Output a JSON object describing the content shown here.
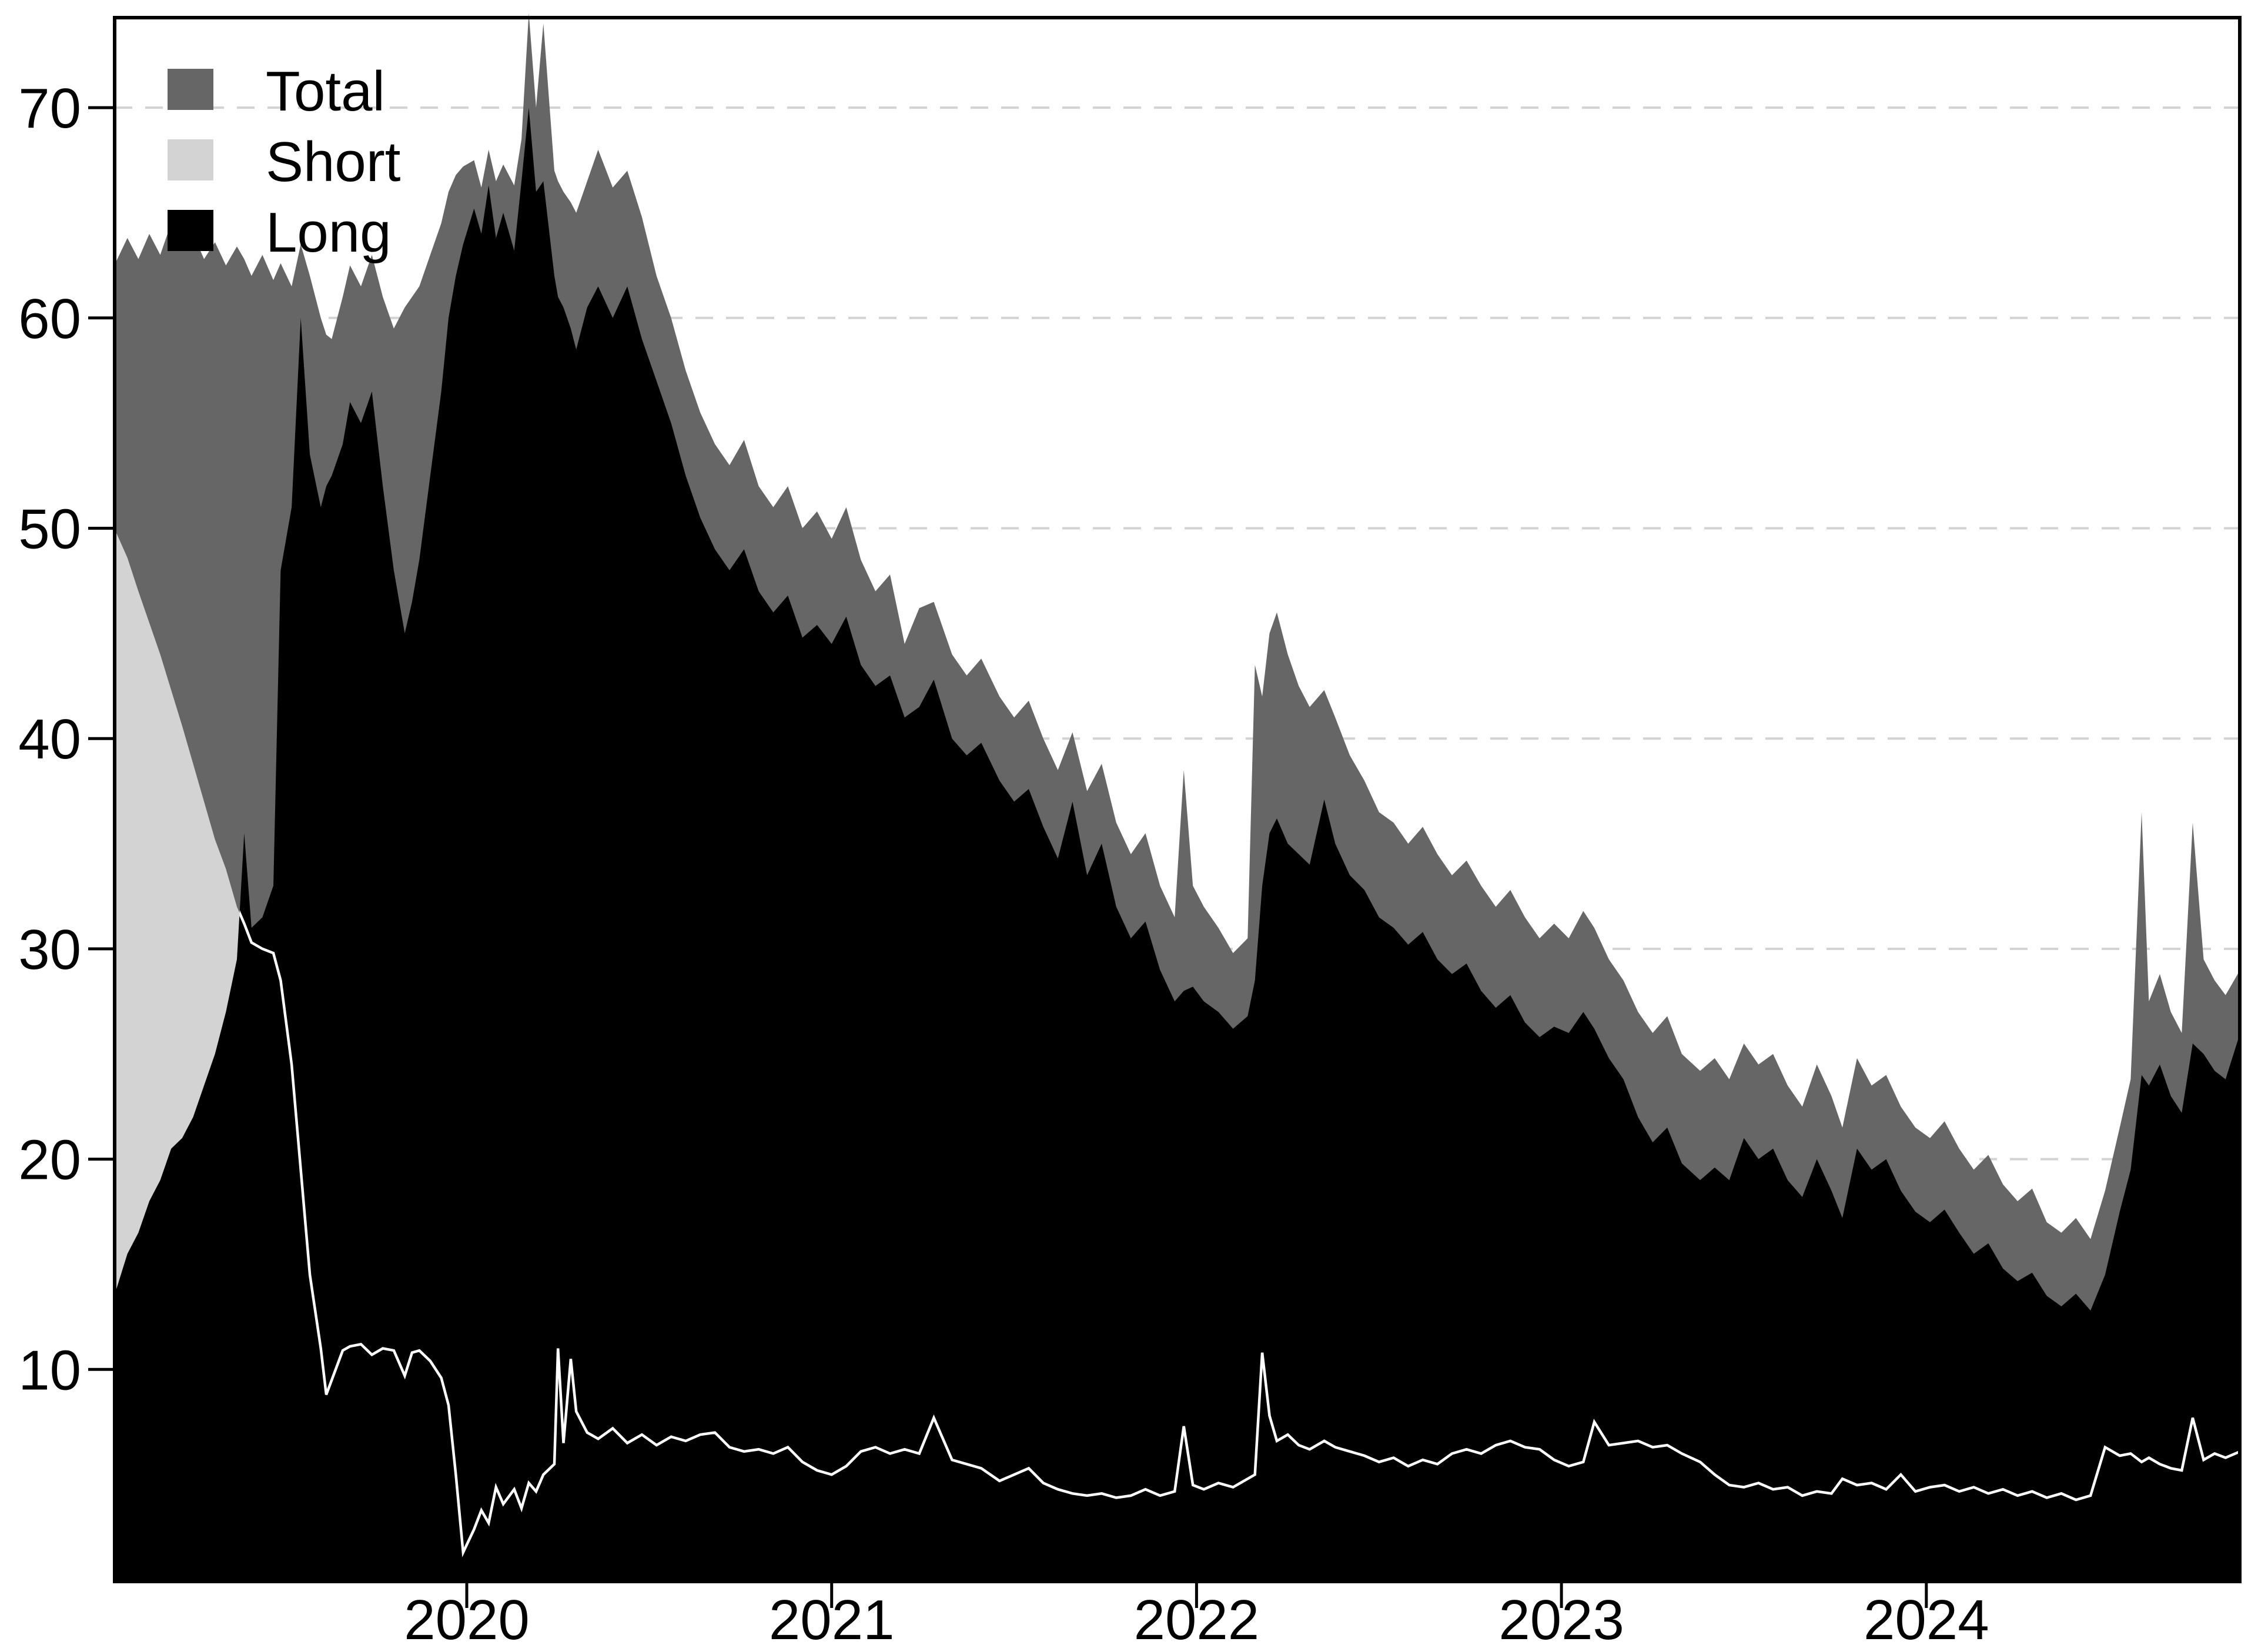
{
  "chart_data": {
    "type": "area",
    "title": "",
    "xlabel": "",
    "ylabel": "",
    "x_unit": "year (decimal)",
    "xlim": [
      2019.03,
      2024.87
    ],
    "ylim": [
      0,
      74.3
    ],
    "grid": {
      "visible": true,
      "style": "dashed",
      "color": "#d3d3d3",
      "at": [
        10,
        20,
        30,
        40,
        50,
        60,
        70
      ]
    },
    "x_ticks": [
      2020,
      2021,
      2022,
      2023,
      2024
    ],
    "x_tick_labels": [
      "2020",
      "2021",
      "2022",
      "2023",
      "2024"
    ],
    "y_ticks": [
      10,
      20,
      30,
      40,
      50,
      60,
      70
    ],
    "y_tick_labels": [
      "10",
      "20",
      "30",
      "40",
      "50",
      "60",
      "70"
    ],
    "legend": {
      "position": "top-left",
      "items": [
        {
          "label": "Total",
          "color": "#666666",
          "kind": "area"
        },
        {
          "label": "Short",
          "color": "#d3d3d3",
          "kind": "area"
        },
        {
          "label": "Long",
          "color": "#000000",
          "kind": "area"
        }
      ]
    },
    "overlay_line": {
      "series": "Short",
      "color": "#ffffff",
      "note": "Short series drawn as white line where it is covered by the black Long area"
    },
    "colors": {
      "total": "#666666",
      "short": "#d3d3d3",
      "long": "#000000",
      "axis": "#000000",
      "background": "#ffffff"
    },
    "series_names": [
      "Total",
      "Long",
      "Short"
    ],
    "points_format": [
      "t_decimal_year",
      "total",
      "long",
      "short"
    ],
    "points": [
      [
        2019.034,
        62.5,
        13.5,
        50.0
      ],
      [
        2019.07,
        63.8,
        15.5,
        48.6
      ],
      [
        2019.1,
        62.8,
        16.5,
        47.0
      ],
      [
        2019.13,
        64.0,
        18.0,
        45.5
      ],
      [
        2019.16,
        63.0,
        19.0,
        44.0
      ],
      [
        2019.19,
        64.5,
        20.5,
        42.3
      ],
      [
        2019.22,
        63.2,
        21.0,
        40.6
      ],
      [
        2019.25,
        64.0,
        22.0,
        38.8
      ],
      [
        2019.28,
        62.8,
        23.5,
        37.0
      ],
      [
        2019.31,
        63.6,
        25.0,
        35.2
      ],
      [
        2019.34,
        62.5,
        27.0,
        33.8
      ],
      [
        2019.37,
        63.4,
        29.5,
        32.0
      ],
      [
        2019.39,
        62.8,
        35.5,
        31.2
      ],
      [
        2019.41,
        62.0,
        31.0,
        30.3
      ],
      [
        2019.44,
        63.0,
        31.5,
        30.0
      ],
      [
        2019.47,
        61.8,
        33.0,
        29.8
      ],
      [
        2019.49,
        62.6,
        48.0,
        28.5
      ],
      [
        2019.52,
        61.5,
        51.0,
        24.5
      ],
      [
        2019.545,
        63.5,
        60.0,
        19.5
      ],
      [
        2019.57,
        62.0,
        53.5,
        14.5
      ],
      [
        2019.6,
        60.0,
        51.0,
        11.0
      ],
      [
        2019.615,
        59.2,
        52.0,
        8.8
      ],
      [
        2019.63,
        59.0,
        52.5,
        9.5
      ],
      [
        2019.66,
        61.0,
        54.0,
        10.9
      ],
      [
        2019.68,
        62.5,
        56.0,
        11.1
      ],
      [
        2019.71,
        61.5,
        55.0,
        11.2
      ],
      [
        2019.74,
        63.0,
        56.5,
        10.7
      ],
      [
        2019.77,
        61.0,
        52.0,
        11.0
      ],
      [
        2019.8,
        59.5,
        48.0,
        10.9
      ],
      [
        2019.83,
        60.5,
        45.0,
        9.7
      ],
      [
        2019.85,
        61.0,
        46.5,
        10.8
      ],
      [
        2019.87,
        61.5,
        48.5,
        10.9
      ],
      [
        2019.9,
        63.0,
        52.5,
        10.4
      ],
      [
        2019.93,
        64.5,
        56.5,
        9.6
      ],
      [
        2019.95,
        66.0,
        60.0,
        8.3
      ],
      [
        2019.97,
        66.8,
        62.0,
        5.0
      ],
      [
        2019.99,
        67.2,
        63.5,
        1.3
      ],
      [
        2020.02,
        67.5,
        65.2,
        2.4
      ],
      [
        2020.04,
        66.2,
        64.0,
        3.3
      ],
      [
        2020.06,
        68.0,
        66.3,
        2.7
      ],
      [
        2020.08,
        66.5,
        63.8,
        4.4
      ],
      [
        2020.1,
        67.3,
        65.0,
        3.6
      ],
      [
        2020.13,
        66.3,
        63.2,
        4.3
      ],
      [
        2020.15,
        68.5,
        66.5,
        3.4
      ],
      [
        2020.17,
        74.5,
        70.0,
        4.6
      ],
      [
        2020.19,
        70.0,
        66.0,
        4.2
      ],
      [
        2020.21,
        74.0,
        66.5,
        5.0
      ],
      [
        2020.24,
        67.0,
        62.0,
        5.5
      ],
      [
        2020.25,
        66.5,
        61.0,
        11.0
      ],
      [
        2020.265,
        66.0,
        60.5,
        6.5
      ],
      [
        2020.285,
        65.5,
        59.5,
        10.5
      ],
      [
        2020.3,
        65.0,
        58.5,
        8.0
      ],
      [
        2020.33,
        66.5,
        60.5,
        7.0
      ],
      [
        2020.36,
        68.0,
        61.5,
        6.7
      ],
      [
        2020.4,
        66.2,
        60.0,
        7.2
      ],
      [
        2020.44,
        67.0,
        61.5,
        6.5
      ],
      [
        2020.48,
        64.8,
        59.0,
        6.9
      ],
      [
        2020.52,
        62.0,
        57.0,
        6.4
      ],
      [
        2020.56,
        60.0,
        55.0,
        6.8
      ],
      [
        2020.6,
        57.5,
        52.5,
        6.6
      ],
      [
        2020.64,
        55.5,
        50.5,
        6.9
      ],
      [
        2020.68,
        54.0,
        49.0,
        7.0
      ],
      [
        2020.72,
        53.0,
        48.0,
        6.3
      ],
      [
        2020.76,
        54.2,
        49.0,
        6.1
      ],
      [
        2020.8,
        52.0,
        47.0,
        6.2
      ],
      [
        2020.84,
        51.0,
        46.0,
        6.0
      ],
      [
        2020.88,
        52.0,
        46.8,
        6.3
      ],
      [
        2020.92,
        50.0,
        44.8,
        5.6
      ],
      [
        2020.96,
        50.8,
        45.4,
        5.2
      ],
      [
        2021.0,
        49.5,
        44.5,
        5.0
      ],
      [
        2021.04,
        51.0,
        45.8,
        5.4
      ],
      [
        2021.08,
        48.5,
        43.5,
        6.1
      ],
      [
        2021.12,
        47.0,
        42.5,
        6.3
      ],
      [
        2021.16,
        47.8,
        43.0,
        6.0
      ],
      [
        2021.2,
        44.5,
        41.0,
        6.2
      ],
      [
        2021.24,
        46.2,
        41.5,
        6.0
      ],
      [
        2021.28,
        46.5,
        42.8,
        7.7
      ],
      [
        2021.33,
        44.0,
        40.0,
        5.7
      ],
      [
        2021.37,
        43.0,
        39.2,
        5.5
      ],
      [
        2021.41,
        43.8,
        39.8,
        5.3
      ],
      [
        2021.46,
        42.0,
        38.0,
        4.7
      ],
      [
        2021.5,
        41.0,
        37.0,
        5.0
      ],
      [
        2021.54,
        41.8,
        37.6,
        5.3
      ],
      [
        2021.58,
        40.0,
        35.8,
        4.6
      ],
      [
        2021.62,
        38.5,
        34.3,
        4.3
      ],
      [
        2021.66,
        40.3,
        37.0,
        4.1
      ],
      [
        2021.7,
        37.5,
        33.5,
        4.0
      ],
      [
        2021.74,
        38.8,
        35.0,
        4.1
      ],
      [
        2021.78,
        36.0,
        32.0,
        3.9
      ],
      [
        2021.82,
        34.5,
        30.5,
        4.0
      ],
      [
        2021.86,
        35.5,
        31.3,
        4.3
      ],
      [
        2021.9,
        33.0,
        29.0,
        4.0
      ],
      [
        2021.94,
        31.5,
        27.5,
        4.2
      ],
      [
        2021.965,
        38.5,
        28.0,
        7.3
      ],
      [
        2021.99,
        33.0,
        28.2,
        4.5
      ],
      [
        2022.02,
        32.0,
        27.5,
        4.3
      ],
      [
        2022.06,
        31.0,
        27.0,
        4.6
      ],
      [
        2022.1,
        29.8,
        26.2,
        4.4
      ],
      [
        2022.14,
        30.5,
        26.8,
        4.8
      ],
      [
        2022.16,
        43.5,
        28.5,
        5.0
      ],
      [
        2022.18,
        42.0,
        33.0,
        10.8
      ],
      [
        2022.2,
        45.0,
        35.5,
        7.8
      ],
      [
        2022.22,
        46.0,
        36.2,
        6.6
      ],
      [
        2022.25,
        44.0,
        35.0,
        6.9
      ],
      [
        2022.28,
        42.5,
        34.5,
        6.4
      ],
      [
        2022.31,
        41.5,
        34.0,
        6.2
      ],
      [
        2022.35,
        42.3,
        37.1,
        6.6
      ],
      [
        2022.38,
        41.0,
        35.0,
        6.3
      ],
      [
        2022.42,
        39.2,
        33.5,
        6.1
      ],
      [
        2022.46,
        38.0,
        32.8,
        5.9
      ],
      [
        2022.5,
        36.5,
        31.5,
        5.6
      ],
      [
        2022.54,
        36.0,
        31.0,
        5.8
      ],
      [
        2022.58,
        35.0,
        30.2,
        5.4
      ],
      [
        2022.62,
        35.8,
        30.8,
        5.7
      ],
      [
        2022.66,
        34.5,
        29.5,
        5.5
      ],
      [
        2022.7,
        33.5,
        28.8,
        6.0
      ],
      [
        2022.74,
        34.2,
        29.3,
        6.2
      ],
      [
        2022.78,
        33.0,
        28.0,
        6.0
      ],
      [
        2022.82,
        32.0,
        27.2,
        6.4
      ],
      [
        2022.86,
        32.8,
        27.8,
        6.6
      ],
      [
        2022.9,
        31.5,
        26.5,
        6.3
      ],
      [
        2022.94,
        30.5,
        25.8,
        6.2
      ],
      [
        2022.98,
        31.2,
        26.3,
        5.7
      ],
      [
        2023.02,
        30.5,
        26.0,
        5.4
      ],
      [
        2023.06,
        31.8,
        27.0,
        5.6
      ],
      [
        2023.09,
        31.0,
        26.2,
        7.5
      ],
      [
        2023.13,
        29.5,
        24.8,
        6.4
      ],
      [
        2023.17,
        28.5,
        23.8,
        6.5
      ],
      [
        2023.21,
        27.0,
        22.0,
        6.6
      ],
      [
        2023.25,
        26.0,
        20.8,
        6.3
      ],
      [
        2023.29,
        26.8,
        21.5,
        6.4
      ],
      [
        2023.33,
        25.0,
        19.8,
        6.0
      ],
      [
        2023.38,
        24.2,
        19.0,
        5.6
      ],
      [
        2023.42,
        24.8,
        19.6,
        5.0
      ],
      [
        2023.46,
        23.8,
        19.0,
        4.5
      ],
      [
        2023.5,
        25.5,
        21.0,
        4.4
      ],
      [
        2023.54,
        24.5,
        20.0,
        4.6
      ],
      [
        2023.58,
        25.0,
        20.5,
        4.3
      ],
      [
        2023.62,
        23.5,
        19.0,
        4.4
      ],
      [
        2023.66,
        22.5,
        18.2,
        4.0
      ],
      [
        2023.7,
        24.5,
        20.0,
        4.2
      ],
      [
        2023.74,
        23.0,
        18.5,
        4.1
      ],
      [
        2023.77,
        21.5,
        17.2,
        4.8
      ],
      [
        2023.81,
        24.8,
        20.5,
        4.5
      ],
      [
        2023.85,
        23.5,
        19.5,
        4.6
      ],
      [
        2023.89,
        24.0,
        20.0,
        4.3
      ],
      [
        2023.93,
        22.5,
        18.5,
        5.0
      ],
      [
        2023.97,
        21.5,
        17.5,
        4.2
      ],
      [
        2024.01,
        21.0,
        17.0,
        4.4
      ],
      [
        2024.05,
        21.8,
        17.6,
        4.5
      ],
      [
        2024.09,
        20.5,
        16.5,
        4.2
      ],
      [
        2024.13,
        19.5,
        15.5,
        4.4
      ],
      [
        2024.17,
        20.2,
        16.0,
        4.1
      ],
      [
        2024.21,
        18.8,
        14.8,
        4.3
      ],
      [
        2024.25,
        18.0,
        14.2,
        4.0
      ],
      [
        2024.29,
        18.6,
        14.6,
        4.2
      ],
      [
        2024.33,
        17.0,
        13.5,
        3.9
      ],
      [
        2024.37,
        16.5,
        13.0,
        4.1
      ],
      [
        2024.41,
        17.2,
        13.6,
        3.8
      ],
      [
        2024.45,
        16.2,
        12.8,
        4.0
      ],
      [
        2024.49,
        18.5,
        14.5,
        6.3
      ],
      [
        2024.53,
        21.5,
        17.5,
        5.9
      ],
      [
        2024.56,
        23.8,
        19.5,
        6.0
      ],
      [
        2024.59,
        36.5,
        24.0,
        5.6
      ],
      [
        2024.61,
        27.5,
        23.5,
        5.8
      ],
      [
        2024.64,
        28.8,
        24.5,
        5.5
      ],
      [
        2024.67,
        27.0,
        23.0,
        5.3
      ],
      [
        2024.7,
        26.0,
        22.2,
        5.2
      ],
      [
        2024.73,
        36.0,
        25.5,
        7.7
      ],
      [
        2024.76,
        29.5,
        25.0,
        5.7
      ],
      [
        2024.79,
        28.5,
        24.2,
        6.0
      ],
      [
        2024.82,
        27.8,
        23.8,
        5.8
      ],
      [
        2024.86,
        29.0,
        26.0,
        6.1
      ]
    ]
  }
}
